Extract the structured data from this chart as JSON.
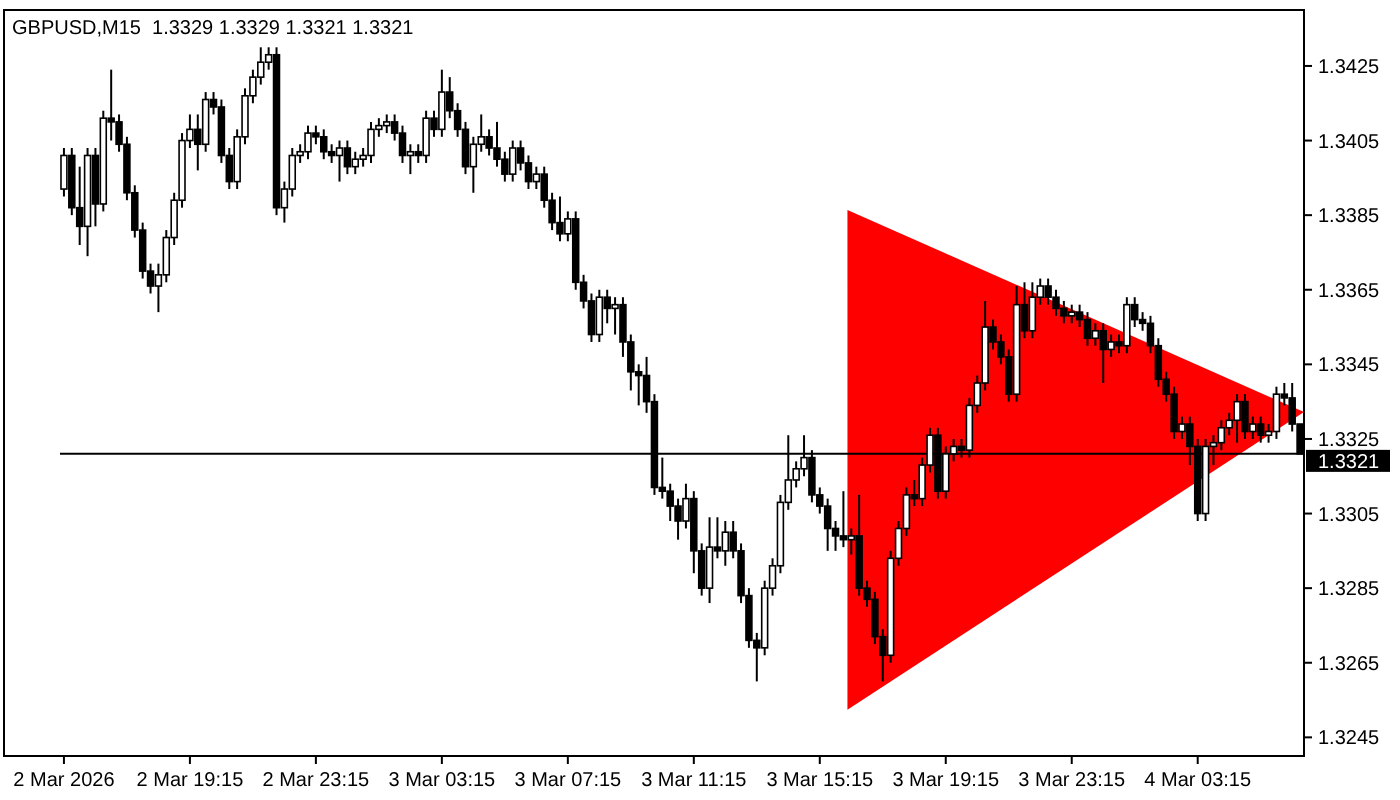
{
  "chart_data": {
    "type": "candlestick",
    "title": "GBPUSD,M15  1.3329 1.3329 1.3321 1.3321",
    "categories": [
      "2 Mar 2026",
      null,
      null,
      null,
      null,
      null,
      null,
      null,
      null,
      null,
      null,
      null,
      null,
      null,
      null,
      null,
      "2 Mar 19:15",
      null,
      null,
      null,
      null,
      null,
      null,
      null,
      null,
      null,
      null,
      null,
      null,
      null,
      null,
      null,
      "2 Mar 23:15",
      null,
      null,
      null,
      null,
      null,
      null,
      null,
      null,
      null,
      null,
      null,
      null,
      null,
      null,
      null,
      "3 Mar 03:15",
      null,
      null,
      null,
      null,
      null,
      null,
      null,
      null,
      null,
      null,
      null,
      null,
      null,
      null,
      null,
      "3 Mar 07:15",
      null,
      null,
      null,
      null,
      null,
      null,
      null,
      null,
      null,
      null,
      null,
      null,
      null,
      null,
      null,
      "3 Mar 11:15",
      null,
      null,
      null,
      null,
      null,
      null,
      null,
      null,
      null,
      null,
      null,
      null,
      null,
      null,
      null,
      "3 Mar 15:15",
      null,
      null,
      null,
      null,
      null,
      null,
      null,
      null,
      null,
      null,
      null,
      null,
      null,
      null,
      null,
      "3 Mar 19:15",
      null,
      null,
      null,
      null,
      null,
      null,
      null,
      null,
      null,
      null,
      null,
      null,
      null,
      null,
      null,
      "3 Mar 23:15",
      null,
      null,
      null,
      null,
      null,
      null,
      null,
      null,
      null,
      null,
      null,
      null,
      null,
      null,
      null,
      "4 Mar 03:15",
      null,
      null,
      null,
      null,
      null,
      null,
      null,
      null,
      null,
      null,
      null,
      null,
      null
    ],
    "ohlc": [
      [
        1.3392,
        1.3403,
        1.339,
        1.3401
      ],
      [
        1.3401,
        1.3403,
        1.3385,
        1.3387
      ],
      [
        1.3387,
        1.3398,
        1.3377,
        1.3382
      ],
      [
        1.3382,
        1.3403,
        1.3374,
        1.3401
      ],
      [
        1.3401,
        1.3403,
        1.3382,
        1.3388
      ],
      [
        1.3388,
        1.3413,
        1.3386,
        1.3411
      ],
      [
        1.3411,
        1.3424,
        1.3405,
        1.341
      ],
      [
        1.341,
        1.3412,
        1.3402,
        1.3404
      ],
      [
        1.3404,
        1.3406,
        1.3389,
        1.3391
      ],
      [
        1.3391,
        1.3393,
        1.3379,
        1.3381
      ],
      [
        1.3381,
        1.3383,
        1.3368,
        1.337
      ],
      [
        1.337,
        1.3372,
        1.3364,
        1.3366
      ],
      [
        1.3366,
        1.3372,
        1.3359,
        1.3369
      ],
      [
        1.3369,
        1.3381,
        1.3367,
        1.3379
      ],
      [
        1.3379,
        1.3391,
        1.3377,
        1.3389
      ],
      [
        1.3389,
        1.3407,
        1.3387,
        1.3405
      ],
      [
        1.3405,
        1.3412,
        1.3403,
        1.3408
      ],
      [
        1.3408,
        1.3412,
        1.3397,
        1.3404
      ],
      [
        1.3404,
        1.3418,
        1.3402,
        1.3416
      ],
      [
        1.3416,
        1.3418,
        1.3412,
        1.3414
      ],
      [
        1.3414,
        1.3416,
        1.3399,
        1.3401
      ],
      [
        1.3401,
        1.3403,
        1.3392,
        1.3394
      ],
      [
        1.3394,
        1.3408,
        1.3392,
        1.3406
      ],
      [
        1.3406,
        1.3419,
        1.3404,
        1.3417
      ],
      [
        1.3417,
        1.3424,
        1.3415,
        1.3422
      ],
      [
        1.3422,
        1.343,
        1.342,
        1.3426
      ],
      [
        1.3426,
        1.343,
        1.3424,
        1.3428
      ],
      [
        1.3428,
        1.343,
        1.3385,
        1.3387
      ],
      [
        1.3387,
        1.3394,
        1.3383,
        1.3392
      ],
      [
        1.3392,
        1.3403,
        1.339,
        1.3401
      ],
      [
        1.3401,
        1.3404,
        1.3399,
        1.3402
      ],
      [
        1.3402,
        1.3409,
        1.34,
        1.3407
      ],
      [
        1.3407,
        1.3409,
        1.3404,
        1.3406
      ],
      [
        1.3406,
        1.3408,
        1.34,
        1.3402
      ],
      [
        1.3402,
        1.3404,
        1.3399,
        1.3401
      ],
      [
        1.3401,
        1.3405,
        1.3394,
        1.3403
      ],
      [
        1.3403,
        1.3405,
        1.3396,
        1.3398
      ],
      [
        1.3398,
        1.3402,
        1.3396,
        1.34
      ],
      [
        1.34,
        1.3403,
        1.3398,
        1.3401
      ],
      [
        1.3401,
        1.341,
        1.3399,
        1.3408
      ],
      [
        1.3408,
        1.3411,
        1.3406,
        1.3409
      ],
      [
        1.3409,
        1.3412,
        1.3407,
        1.341
      ],
      [
        1.341,
        1.3412,
        1.3405,
        1.3407
      ],
      [
        1.3407,
        1.3409,
        1.3399,
        1.3401
      ],
      [
        1.3401,
        1.3404,
        1.3396,
        1.3402
      ],
      [
        1.3402,
        1.3404,
        1.3399,
        1.3401
      ],
      [
        1.3401,
        1.3413,
        1.3399,
        1.3411
      ],
      [
        1.3411,
        1.3413,
        1.3406,
        1.3408
      ],
      [
        1.3408,
        1.3424,
        1.3406,
        1.3418
      ],
      [
        1.3418,
        1.3422,
        1.3411,
        1.3413
      ],
      [
        1.3413,
        1.3415,
        1.3406,
        1.3408
      ],
      [
        1.3408,
        1.341,
        1.3396,
        1.3398
      ],
      [
        1.3398,
        1.3406,
        1.3391,
        1.3404
      ],
      [
        1.3404,
        1.3412,
        1.3402,
        1.3406
      ],
      [
        1.3406,
        1.3408,
        1.3401,
        1.3403
      ],
      [
        1.3403,
        1.341,
        1.3398,
        1.34
      ],
      [
        1.34,
        1.3402,
        1.3394,
        1.3396
      ],
      [
        1.3396,
        1.3405,
        1.3394,
        1.3403
      ],
      [
        1.3403,
        1.3405,
        1.3397,
        1.3399
      ],
      [
        1.3399,
        1.3401,
        1.3392,
        1.3394
      ],
      [
        1.3394,
        1.3398,
        1.3392,
        1.3396
      ],
      [
        1.3396,
        1.3398,
        1.3387,
        1.3389
      ],
      [
        1.3389,
        1.3391,
        1.3381,
        1.3383
      ],
      [
        1.3383,
        1.339,
        1.3378,
        1.338
      ],
      [
        1.338,
        1.3386,
        1.3378,
        1.3384
      ],
      [
        1.3384,
        1.3386,
        1.3365,
        1.3367
      ],
      [
        1.3367,
        1.3369,
        1.336,
        1.3362
      ],
      [
        1.3362,
        1.3364,
        1.3351,
        1.3353
      ],
      [
        1.3353,
        1.3365,
        1.3351,
        1.3363
      ],
      [
        1.3363,
        1.3365,
        1.3356,
        1.336
      ],
      [
        1.336,
        1.3363,
        1.3353,
        1.3361
      ],
      [
        1.3361,
        1.3363,
        1.3347,
        1.3351
      ],
      [
        1.3351,
        1.3353,
        1.3338,
        1.3343
      ],
      [
        1.3343,
        1.3345,
        1.3334,
        1.3342
      ],
      [
        1.3342,
        1.3347,
        1.3332,
        1.3335
      ],
      [
        1.3335,
        1.3337,
        1.331,
        1.3312
      ],
      [
        1.3312,
        1.332,
        1.3309,
        1.3311
      ],
      [
        1.3311,
        1.3313,
        1.3303,
        1.3307
      ],
      [
        1.3307,
        1.3309,
        1.3298,
        1.3303
      ],
      [
        1.3303,
        1.3313,
        1.3301,
        1.3309
      ],
      [
        1.3309,
        1.3311,
        1.3289,
        1.3295
      ],
      [
        1.3295,
        1.3297,
        1.3283,
        1.3285
      ],
      [
        1.3285,
        1.3304,
        1.3281,
        1.3296
      ],
      [
        1.3296,
        1.3304,
        1.3293,
        1.3295
      ],
      [
        1.3295,
        1.3303,
        1.3291,
        1.33
      ],
      [
        1.33,
        1.3303,
        1.3293,
        1.3295
      ],
      [
        1.3295,
        1.3297,
        1.3281,
        1.3283
      ],
      [
        1.3283,
        1.3285,
        1.3269,
        1.3271
      ],
      [
        1.3271,
        1.3273,
        1.326,
        1.3269
      ],
      [
        1.3269,
        1.3287,
        1.3267,
        1.3285
      ],
      [
        1.3285,
        1.3293,
        1.3283,
        1.3291
      ],
      [
        1.3291,
        1.331,
        1.3289,
        1.3308
      ],
      [
        1.3308,
        1.3326,
        1.3306,
        1.3314
      ],
      [
        1.3314,
        1.3319,
        1.3312,
        1.3317
      ],
      [
        1.3317,
        1.3326,
        1.3315,
        1.332
      ],
      [
        1.332,
        1.3322,
        1.3308,
        1.331
      ],
      [
        1.331,
        1.3312,
        1.3305,
        1.3307
      ],
      [
        1.3307,
        1.3309,
        1.3295,
        1.3301
      ],
      [
        1.3301,
        1.3303,
        1.3295,
        1.3299
      ],
      [
        1.3299,
        1.3311,
        1.3296,
        1.3298
      ],
      [
        1.3298,
        1.3301,
        1.3294,
        1.3299
      ],
      [
        1.3299,
        1.331,
        1.3283,
        1.3285
      ],
      [
        1.3285,
        1.3287,
        1.328,
        1.3282
      ],
      [
        1.3282,
        1.3284,
        1.327,
        1.3272
      ],
      [
        1.3272,
        1.3274,
        1.326,
        1.3267
      ],
      [
        1.3267,
        1.3295,
        1.3265,
        1.3293
      ],
      [
        1.3293,
        1.3303,
        1.3291,
        1.3301
      ],
      [
        1.3301,
        1.3312,
        1.3299,
        1.331
      ],
      [
        1.331,
        1.3314,
        1.3307,
        1.3309
      ],
      [
        1.3309,
        1.332,
        1.3307,
        1.3318
      ],
      [
        1.3318,
        1.3328,
        1.3316,
        1.3326
      ],
      [
        1.3326,
        1.3328,
        1.3309,
        1.3311
      ],
      [
        1.3311,
        1.3323,
        1.3309,
        1.3321
      ],
      [
        1.3321,
        1.3325,
        1.3319,
        1.3323
      ],
      [
        1.3323,
        1.3325,
        1.332,
        1.3322
      ],
      [
        1.3322,
        1.3336,
        1.332,
        1.3334
      ],
      [
        1.3334,
        1.3342,
        1.3332,
        1.334
      ],
      [
        1.334,
        1.3362,
        1.3338,
        1.3355
      ],
      [
        1.3355,
        1.3357,
        1.3349,
        1.3351
      ],
      [
        1.3351,
        1.3353,
        1.3345,
        1.3347
      ],
      [
        1.3347,
        1.3349,
        1.3335,
        1.3337
      ],
      [
        1.3337,
        1.3366,
        1.3335,
        1.3361
      ],
      [
        1.3361,
        1.3367,
        1.3352,
        1.3354
      ],
      [
        1.3354,
        1.3367,
        1.3352,
        1.3363
      ],
      [
        1.3363,
        1.3368,
        1.3361,
        1.3366
      ],
      [
        1.3366,
        1.3368,
        1.3361,
        1.3363
      ],
      [
        1.3363,
        1.3365,
        1.3358,
        1.336
      ],
      [
        1.336,
        1.3362,
        1.3356,
        1.3358
      ],
      [
        1.3358,
        1.3361,
        1.3356,
        1.3359
      ],
      [
        1.3359,
        1.3361,
        1.3355,
        1.3357
      ],
      [
        1.3357,
        1.3359,
        1.335,
        1.3352
      ],
      [
        1.3352,
        1.3356,
        1.335,
        1.3354
      ],
      [
        1.3354,
        1.3356,
        1.334,
        1.3349
      ],
      [
        1.3349,
        1.3353,
        1.3347,
        1.3351
      ],
      [
        1.3351,
        1.3353,
        1.3348,
        1.335
      ],
      [
        1.335,
        1.3363,
        1.3348,
        1.3361
      ],
      [
        1.3361,
        1.3363,
        1.3355,
        1.3357
      ],
      [
        1.3357,
        1.3359,
        1.3354,
        1.3356
      ],
      [
        1.3356,
        1.3358,
        1.3348,
        1.335
      ],
      [
        1.335,
        1.3352,
        1.3339,
        1.3341
      ],
      [
        1.3341,
        1.3343,
        1.3335,
        1.3337
      ],
      [
        1.3337,
        1.3339,
        1.3325,
        1.3327
      ],
      [
        1.3327,
        1.3331,
        1.3325,
        1.3329
      ],
      [
        1.3329,
        1.3331,
        1.3318,
        1.3323
      ],
      [
        1.3323,
        1.3325,
        1.3303,
        1.3305
      ],
      [
        1.3305,
        1.3325,
        1.3303,
        1.3323
      ],
      [
        1.3323,
        1.3326,
        1.3318,
        1.3324
      ],
      [
        1.3324,
        1.333,
        1.3322,
        1.3328
      ],
      [
        1.3328,
        1.3332,
        1.3326,
        1.333
      ],
      [
        1.333,
        1.3337,
        1.3324,
        1.3335
      ],
      [
        1.3335,
        1.3337,
        1.3325,
        1.3327
      ],
      [
        1.3327,
        1.3331,
        1.3325,
        1.3329
      ],
      [
        1.3329,
        1.3331,
        1.3324,
        1.3326
      ],
      [
        1.3326,
        1.3329,
        1.3324,
        1.3327
      ],
      [
        1.3327,
        1.3339,
        1.3325,
        1.3337
      ],
      [
        1.3337,
        1.334,
        1.3334,
        1.3336
      ],
      [
        1.3336,
        1.334,
        1.3327,
        1.3329
      ],
      [
        1.3329,
        1.3329,
        1.3321,
        1.3321
      ]
    ],
    "ylim": [
      1.324,
      1.344
    ],
    "yticks": [
      1.3245,
      1.3265,
      1.3285,
      1.3305,
      1.3325,
      1.3345,
      1.3365,
      1.3385,
      1.3405,
      1.3425
    ],
    "ref_lines": [
      {
        "axis": "y",
        "value": 1.3321,
        "label": "1.3321",
        "color": "#000000"
      }
    ],
    "grid": false
  }
}
